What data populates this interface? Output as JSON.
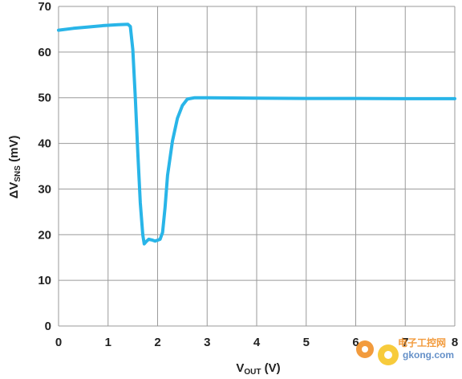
{
  "chart_data": {
    "type": "line",
    "xlabel": {
      "main": "V",
      "sub": "OUT",
      "unit": " (V)"
    },
    "ylabel": {
      "prefix": "ΔV",
      "sub": "SNS",
      "unit": " (mV)"
    },
    "xlim": [
      0,
      8
    ],
    "ylim": [
      0,
      70
    ],
    "xticks": [
      "0",
      "1",
      "2",
      "3",
      "4",
      "5",
      "6",
      "7",
      "8"
    ],
    "yticks": [
      "0",
      "10",
      "20",
      "30",
      "40",
      "50",
      "60",
      "70"
    ],
    "grid": true,
    "legend": "none",
    "series": [
      {
        "color": "#29b5e8",
        "points": [
          [
            0.0,
            64.8
          ],
          [
            0.3,
            65.2
          ],
          [
            0.6,
            65.5
          ],
          [
            0.9,
            65.8
          ],
          [
            1.2,
            66.0
          ],
          [
            1.4,
            66.1
          ],
          [
            1.45,
            65.6
          ],
          [
            1.5,
            60.5
          ],
          [
            1.55,
            50.0
          ],
          [
            1.6,
            38.0
          ],
          [
            1.65,
            27.0
          ],
          [
            1.7,
            20.0
          ],
          [
            1.73,
            18.0
          ],
          [
            1.77,
            18.5
          ],
          [
            1.82,
            19.0
          ],
          [
            1.9,
            18.8
          ],
          [
            1.95,
            18.6
          ],
          [
            2.05,
            19.0
          ],
          [
            2.1,
            20.5
          ],
          [
            2.15,
            26.0
          ],
          [
            2.2,
            33.0
          ],
          [
            2.3,
            40.5
          ],
          [
            2.4,
            45.5
          ],
          [
            2.5,
            48.3
          ],
          [
            2.6,
            49.7
          ],
          [
            2.75,
            50.0
          ],
          [
            3.0,
            50.0
          ],
          [
            4.0,
            49.9
          ],
          [
            5.0,
            49.85
          ],
          [
            6.0,
            49.85
          ],
          [
            7.0,
            49.8
          ],
          [
            8.0,
            49.8
          ]
        ]
      }
    ]
  },
  "watermark": {
    "text_cn": "电子工控网",
    "text_url": "gkong.com",
    "icon": "gear-icon",
    "color_orange": "#f08a1c",
    "color_yellow": "#f6c21b",
    "color_blue": "#4a7dbf"
  }
}
